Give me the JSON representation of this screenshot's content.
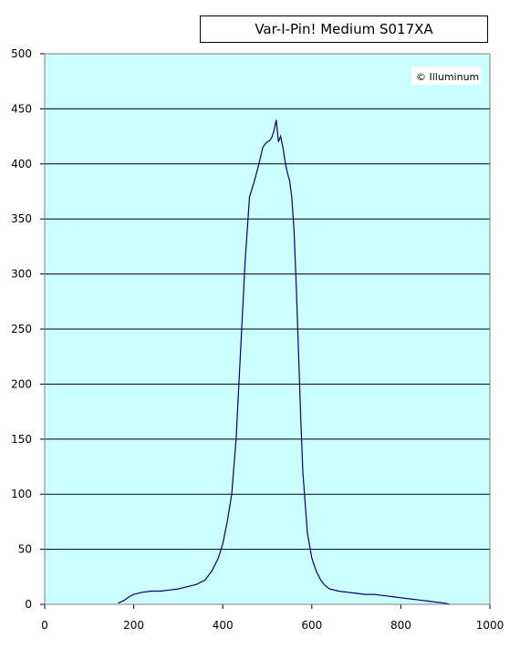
{
  "chart_data": {
    "type": "line",
    "title": "Var-I-Pin! Medium S017XA",
    "watermark": "© Illuminum",
    "xlabel": "",
    "ylabel": "",
    "xlim": [
      0,
      1000
    ],
    "ylim": [
      0,
      500
    ],
    "x_ticks": [
      0,
      200,
      400,
      600,
      800,
      1000
    ],
    "y_ticks": [
      0,
      50,
      100,
      150,
      200,
      250,
      300,
      350,
      400,
      450,
      500
    ],
    "grid": {
      "horizontal": true,
      "vertical": false
    },
    "plot_background": "#ccffff",
    "line_color": "#000080",
    "series": [
      {
        "x": [
          165,
          180,
          190,
          200,
          220,
          240,
          260,
          280,
          300,
          320,
          340,
          360,
          375,
          390,
          400,
          410,
          420,
          430,
          440,
          450,
          460,
          470,
          480,
          490,
          495,
          500,
          505,
          510,
          515,
          520,
          525,
          530,
          535,
          540,
          545,
          550,
          555,
          560,
          565,
          570,
          575,
          580,
          590,
          600,
          610,
          620,
          630,
          640,
          660,
          680,
          700,
          720,
          740,
          760,
          780,
          800,
          820,
          840,
          860,
          880,
          900,
          910
        ],
        "y": [
          1,
          4,
          7,
          9,
          11,
          12,
          12,
          13,
          14,
          16,
          18,
          22,
          30,
          42,
          55,
          75,
          100,
          150,
          230,
          310,
          370,
          383,
          398,
          415,
          418,
          420,
          421,
          424,
          430,
          440,
          420,
          425,
          415,
          402,
          392,
          385,
          370,
          340,
          290,
          230,
          170,
          120,
          65,
          42,
          30,
          22,
          17,
          14,
          12,
          11,
          10,
          9,
          9,
          8,
          7,
          6,
          5,
          4,
          3,
          2,
          1,
          0
        ]
      }
    ]
  }
}
